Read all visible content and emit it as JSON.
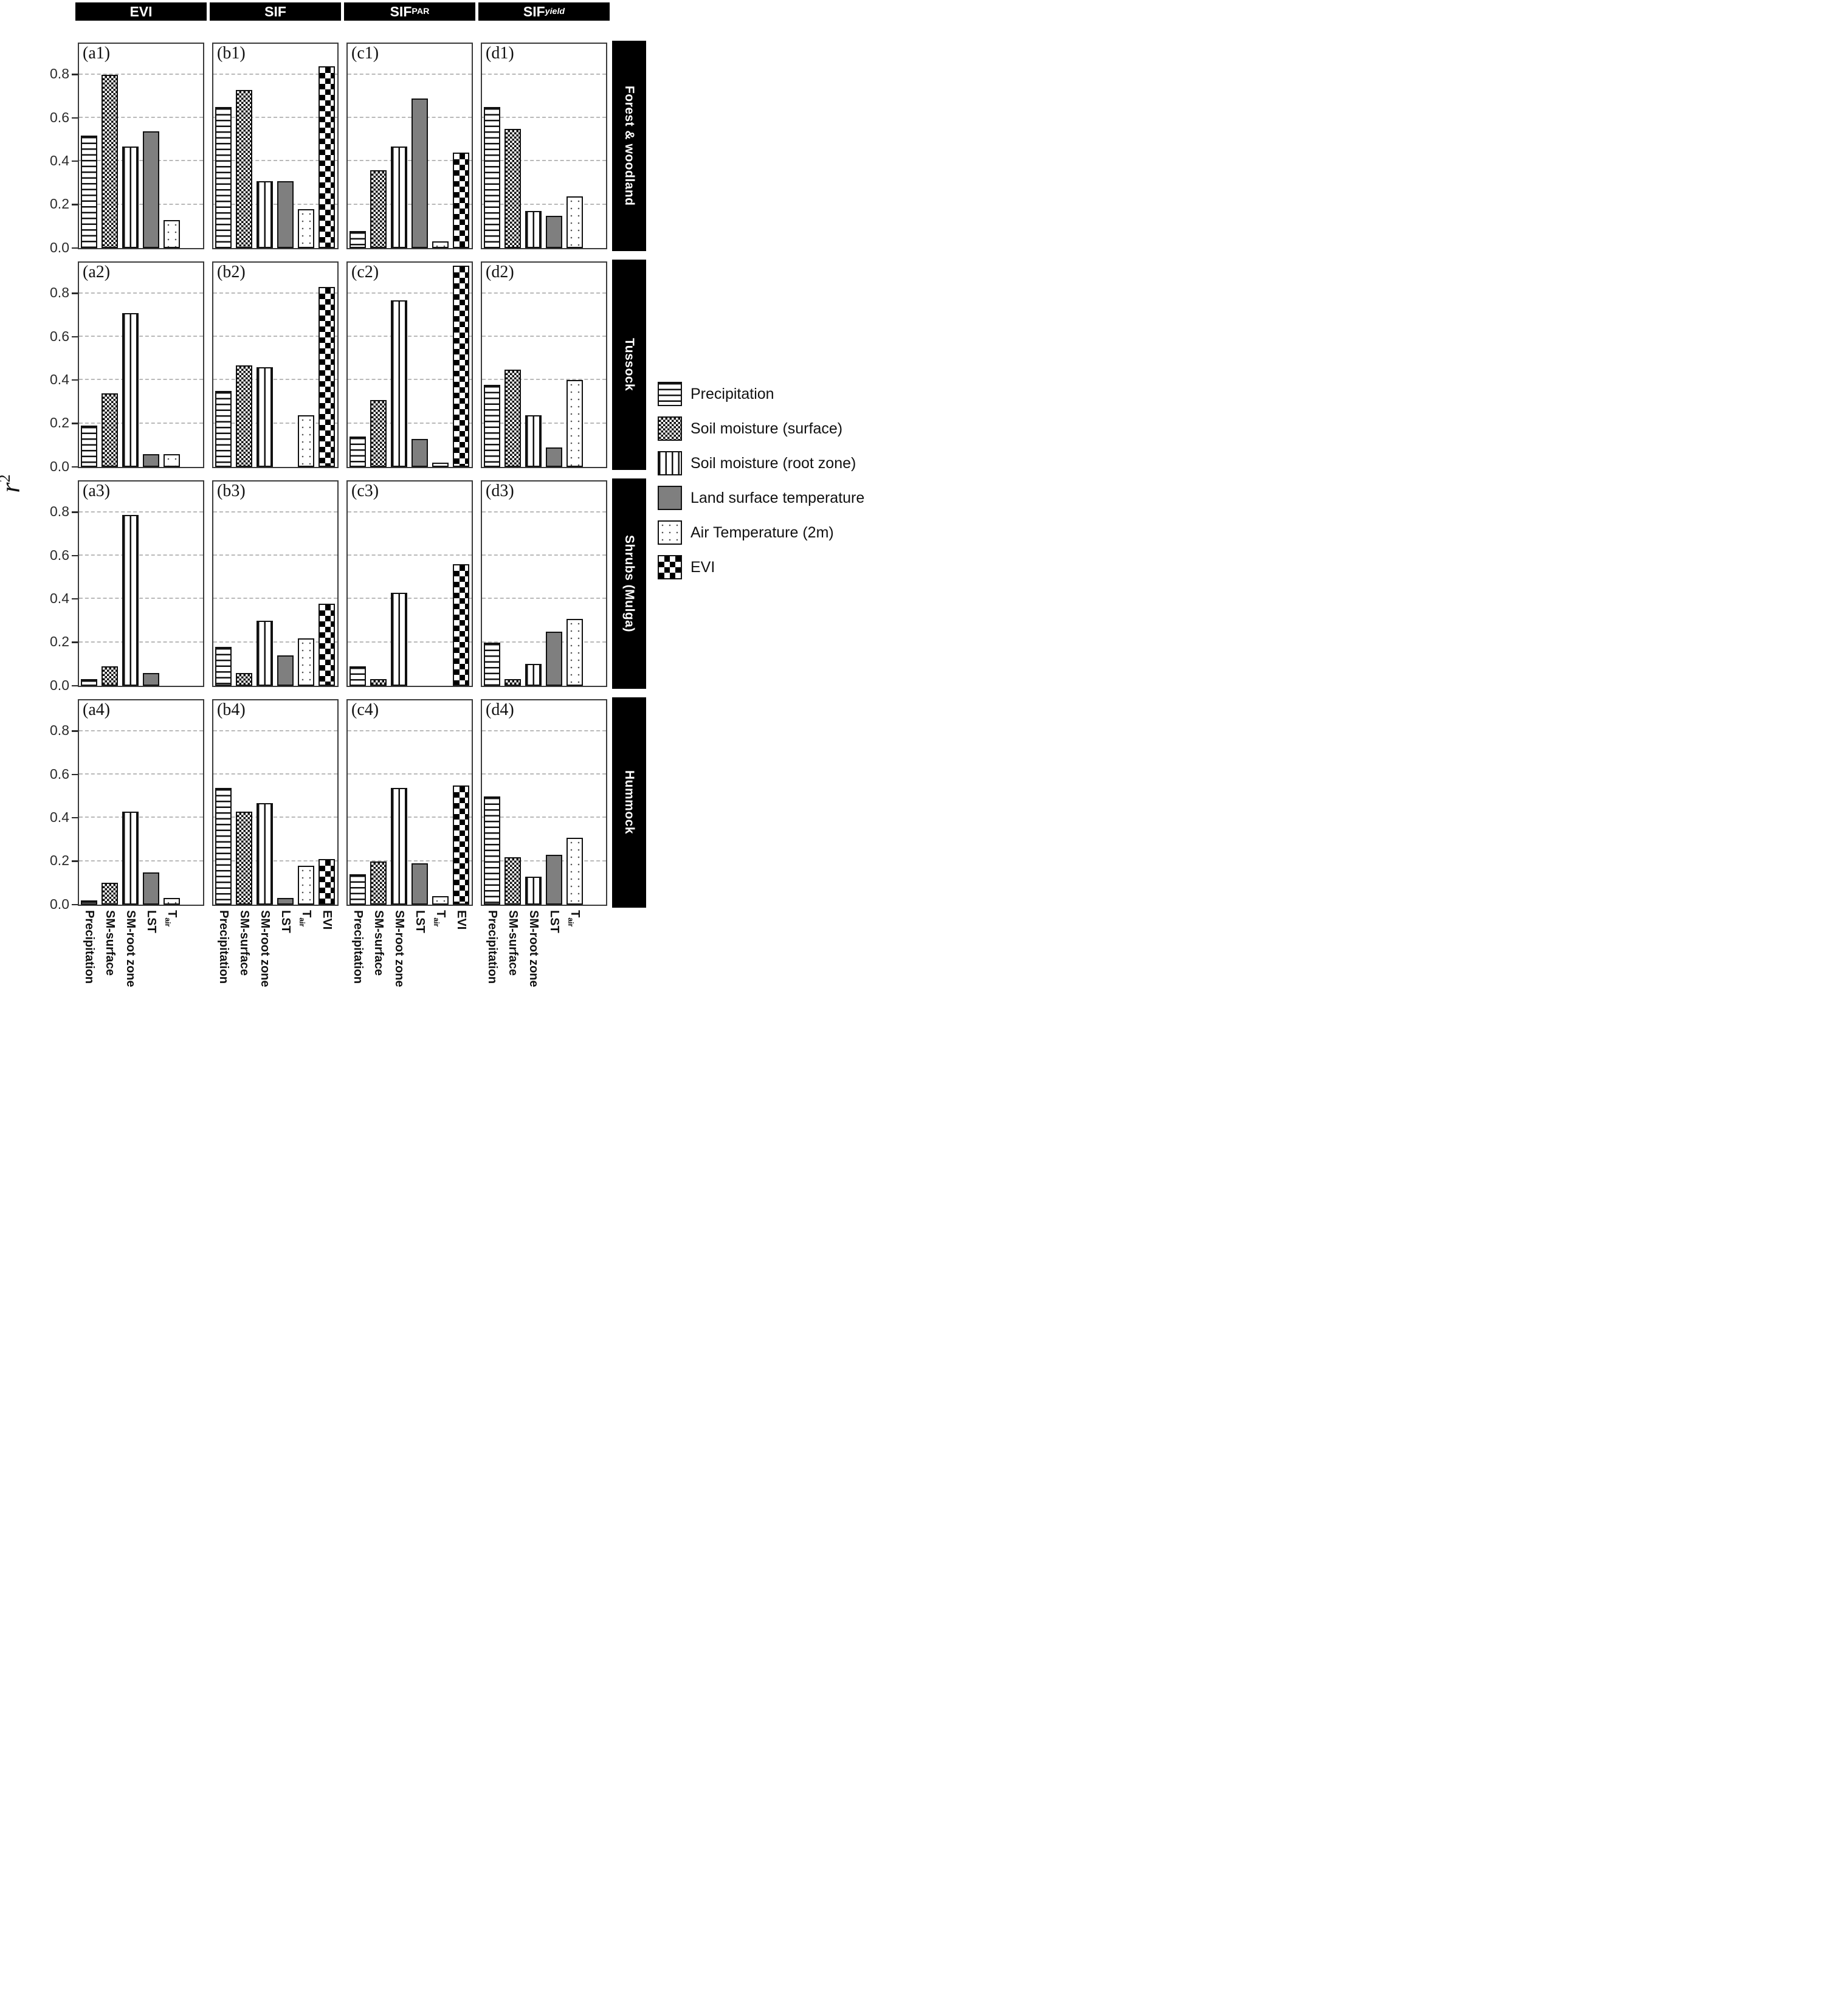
{
  "figure": {
    "ylabel": {
      "base": "r",
      "exp": "2"
    },
    "y_tick_labels": [
      "0.0",
      "0.2",
      "0.4",
      "0.6",
      "0.8"
    ]
  },
  "legend": {
    "items": [
      {
        "key": "precip",
        "label": "Precipitation"
      },
      {
        "key": "smsurf",
        "label": "Soil moisture (surface)"
      },
      {
        "key": "smroot",
        "label": "Soil moisture (root zone)"
      },
      {
        "key": "lst",
        "label": "Land surface temperature"
      },
      {
        "key": "tair",
        "label": "Air Temperature (2m)"
      },
      {
        "key": "evi",
        "label": "EVI"
      }
    ]
  },
  "chart_data": {
    "type": "bar",
    "layout": "4x4 small multiples; columns are response variables, rows are vegetation types",
    "ylabel": "r2",
    "ylim": [
      0,
      0.94
    ],
    "y_ticks": [
      0.0,
      0.2,
      0.4,
      0.6,
      0.8
    ],
    "grid": "dashed horizontal gridlines at each tick",
    "legend_position": "right",
    "columns_display": [
      {
        "text": "EVI",
        "sub": ""
      },
      {
        "text": "SIF",
        "sub": ""
      },
      {
        "text": "SIF",
        "sub": "PAR",
        "sub_italic": false
      },
      {
        "text": "SIF",
        "sub": "yield",
        "sub_italic": true
      }
    ],
    "rows": [
      "Forest & woodland",
      "Tussock",
      "Shrubs (Mulga)",
      "Hummock"
    ],
    "categories": [
      "Precipitation",
      "SM-surface",
      "SM-root zone",
      "LST",
      "Tair",
      "EVI"
    ],
    "x_labels": [
      {
        "text": "Precipitation",
        "sub": ""
      },
      {
        "text": "SM-surface",
        "sub": ""
      },
      {
        "text": "SM-root zone",
        "sub": ""
      },
      {
        "text": "LST",
        "sub": ""
      },
      {
        "text": "T",
        "sub": "air"
      },
      {
        "text": "EVI",
        "sub": ""
      }
    ],
    "panels": [
      {
        "label": "(a1)",
        "row": "Forest & woodland",
        "column": "EVI",
        "values": [
          0.52,
          0.8,
          0.47,
          0.54,
          0.13,
          null
        ]
      },
      {
        "label": "(b1)",
        "row": "Forest & woodland",
        "column": "SIF",
        "values": [
          0.65,
          0.73,
          0.31,
          0.31,
          0.18,
          0.84
        ]
      },
      {
        "label": "(c1)",
        "row": "Forest & woodland",
        "column": "SIF_PAR",
        "values": [
          0.08,
          0.36,
          0.47,
          0.69,
          0.03,
          0.44
        ]
      },
      {
        "label": "(d1)",
        "row": "Forest & woodland",
        "column": "SIF_yield",
        "values": [
          0.65,
          0.55,
          0.17,
          0.15,
          0.24,
          null
        ]
      },
      {
        "label": "(a2)",
        "row": "Tussock",
        "column": "EVI",
        "values": [
          0.19,
          0.34,
          0.71,
          0.06,
          0.06,
          null
        ]
      },
      {
        "label": "(b2)",
        "row": "Tussock",
        "column": "SIF",
        "values": [
          0.35,
          0.47,
          0.46,
          0.0,
          0.24,
          0.83
        ]
      },
      {
        "label": "(c2)",
        "row": "Tussock",
        "column": "SIF_PAR",
        "values": [
          0.14,
          0.31,
          0.77,
          0.13,
          0.02,
          0.93
        ]
      },
      {
        "label": "(d2)",
        "row": "Tussock",
        "column": "SIF_yield",
        "values": [
          0.38,
          0.45,
          0.24,
          0.09,
          0.4,
          null
        ]
      },
      {
        "label": "(a3)",
        "row": "Shrubs (Mulga)",
        "column": "EVI",
        "values": [
          0.03,
          0.09,
          0.79,
          0.06,
          0.0,
          null
        ]
      },
      {
        "label": "(b3)",
        "row": "Shrubs (Mulga)",
        "column": "SIF",
        "values": [
          0.18,
          0.06,
          0.3,
          0.14,
          0.22,
          0.38
        ]
      },
      {
        "label": "(c3)",
        "row": "Shrubs (Mulga)",
        "column": "SIF_PAR",
        "values": [
          0.09,
          0.03,
          0.43,
          0.0,
          0.0,
          0.56
        ]
      },
      {
        "label": "(d3)",
        "row": "Shrubs (Mulga)",
        "column": "SIF_yield",
        "values": [
          0.2,
          0.03,
          0.1,
          0.25,
          0.31,
          null
        ]
      },
      {
        "label": "(a4)",
        "row": "Hummock",
        "column": "EVI",
        "values": [
          0.02,
          0.1,
          0.43,
          0.15,
          0.03,
          null
        ]
      },
      {
        "label": "(b4)",
        "row": "Hummock",
        "column": "SIF",
        "values": [
          0.54,
          0.43,
          0.47,
          0.03,
          0.18,
          0.21
        ]
      },
      {
        "label": "(c4)",
        "row": "Hummock",
        "column": "SIF_PAR",
        "values": [
          0.14,
          0.2,
          0.54,
          0.19,
          0.04,
          0.55
        ]
      },
      {
        "label": "(d4)",
        "row": "Hummock",
        "column": "SIF_yield",
        "values": [
          0.5,
          0.22,
          0.13,
          0.23,
          0.31,
          null
        ]
      }
    ],
    "clipped_bars": [
      {
        "panel": "(c2)",
        "category": "EVI",
        "note": "bar is clipped at the panel top (> 0.9)"
      }
    ],
    "bar_patterns": {
      "Precipitation": "horizontal stripes",
      "SM-surface": "checkerboard",
      "SM-root zone": "vertical stripes",
      "LST": "solid gray",
      "Tair": "sparse dots",
      "EVI": "black diamonds"
    },
    "colors": {
      "lst_fill": "#7f7f7f",
      "bar_outline": "#111111",
      "header_bg": "#000000",
      "header_fg": "#ffffff",
      "gridline": "#b9b9b9"
    }
  }
}
